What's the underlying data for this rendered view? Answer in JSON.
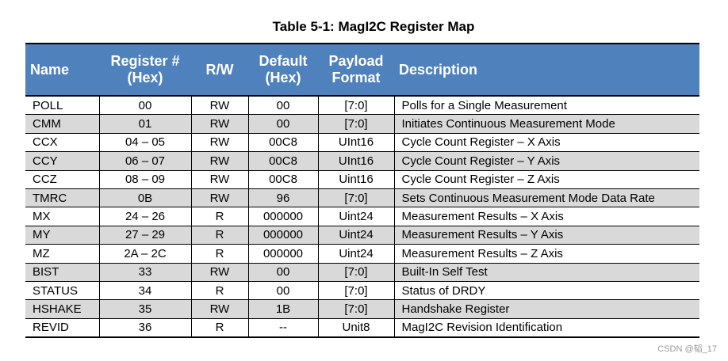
{
  "title": "Table 5-1:  MagI2C Register Map",
  "header_color": "#4f81bd",
  "columns": [
    [
      "Name"
    ],
    [
      "Register #",
      "(Hex)"
    ],
    [
      "R/W"
    ],
    [
      "Default",
      "(Hex)"
    ],
    [
      "Payload",
      "Format"
    ],
    [
      "Description"
    ]
  ],
  "rows": [
    [
      "POLL",
      "00",
      "RW",
      "00",
      "[7:0]",
      "Polls for a Single Measurement"
    ],
    [
      "CMM",
      "01",
      "RW",
      "00",
      "[7:0]",
      "Initiates  Continuous  Measurement  Mode"
    ],
    [
      "CCX",
      "04 – 05",
      "RW",
      "00C8",
      "UInt16",
      "Cycle Count Register – X Axis"
    ],
    [
      "CCY",
      "06 – 07",
      "RW",
      "00C8",
      "UInt16",
      "Cycle Count Register – Y Axis"
    ],
    [
      "CCZ",
      "08 – 09",
      "RW",
      "00C8",
      "Uint16",
      "Cycle Count Register – Z Axis"
    ],
    [
      "TMRC",
      "0B",
      "RW",
      "96",
      "[7:0]",
      "Sets Continuous Measurement Mode Data Rate"
    ],
    [
      "MX",
      "24 – 26",
      "R",
      "000000",
      "Uint24",
      "Measurement Results – X Axis"
    ],
    [
      "MY",
      "27 – 29",
      "R",
      "000000",
      "Uint24",
      "Measurement Results – Y Axis"
    ],
    [
      "MZ",
      "2A – 2C",
      "R",
      "000000",
      "Uint24",
      "Measurement Results – Z Axis"
    ],
    [
      "BIST",
      "33",
      "RW",
      "00",
      "[7:0]",
      "Built-In Self Test"
    ],
    [
      "STATUS",
      "34",
      "R",
      "00",
      "[7:0]",
      "Status of DRDY"
    ],
    [
      "HSHAKE",
      "35",
      "RW",
      "1B",
      "[7:0]",
      "Handshake  Register"
    ],
    [
      "REVID",
      "36",
      "R",
      "--",
      "Unit8",
      "MagI2C Revision Identification"
    ]
  ],
  "watermark": "CSDN @韬_17"
}
